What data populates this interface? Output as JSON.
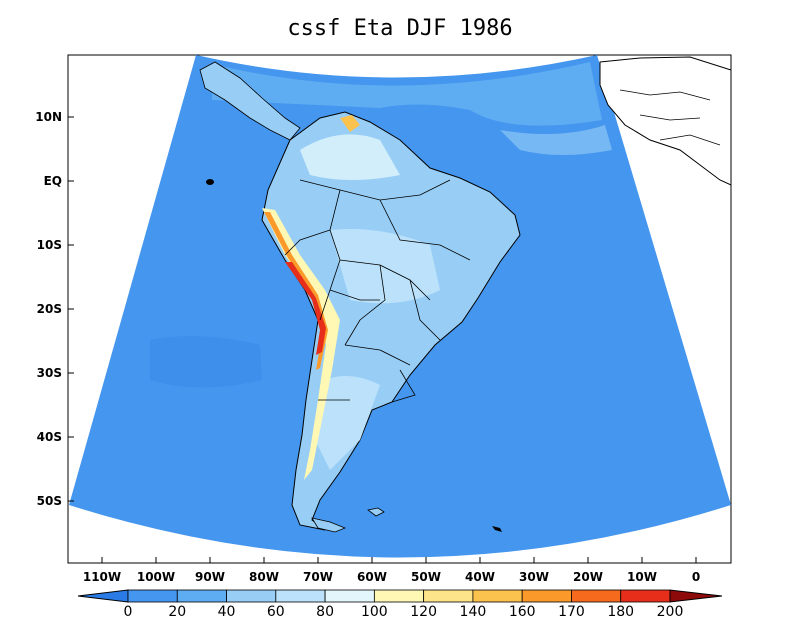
{
  "title": "cssf Eta DJF 1986",
  "lat_labels": [
    "10N",
    "EQ",
    "10S",
    "20S",
    "30S",
    "40S",
    "50S"
  ],
  "lat_values": [
    10,
    0,
    -10,
    -20,
    -30,
    -40,
    -50
  ],
  "lon_labels": [
    "110W",
    "100W",
    "90W",
    "80W",
    "70W",
    "60W",
    "50W",
    "40W",
    "30W",
    "20W",
    "10W",
    "0"
  ],
  "lon_values": [
    -110,
    -100,
    -90,
    -80,
    -70,
    -60,
    -50,
    -40,
    -30,
    -20,
    -10,
    0
  ],
  "colorbar": {
    "labels": [
      "0",
      "20",
      "40",
      "60",
      "80",
      "100",
      "120",
      "140",
      "160",
      "170",
      "180",
      "200"
    ],
    "colors": [
      "#2a7be6",
      "#4596ee",
      "#5eacf2",
      "#98cef6",
      "#bbe2fa",
      "#e2f6fc",
      "#fff8b4",
      "#fde38a",
      "#fcc24e",
      "#fb9a2a",
      "#f66a1e",
      "#e62e1a",
      "#b81410",
      "#8c0a0a"
    ]
  },
  "colors": {
    "ocean": "#4596ee",
    "ocean_light": "#5eacf2",
    "land_low": "#98cef6",
    "land_mid": "#bbe2fa",
    "andes_high": "#e62e1a",
    "andes_mid": "#fb9a2a",
    "andes_low": "#fff8b4"
  }
}
